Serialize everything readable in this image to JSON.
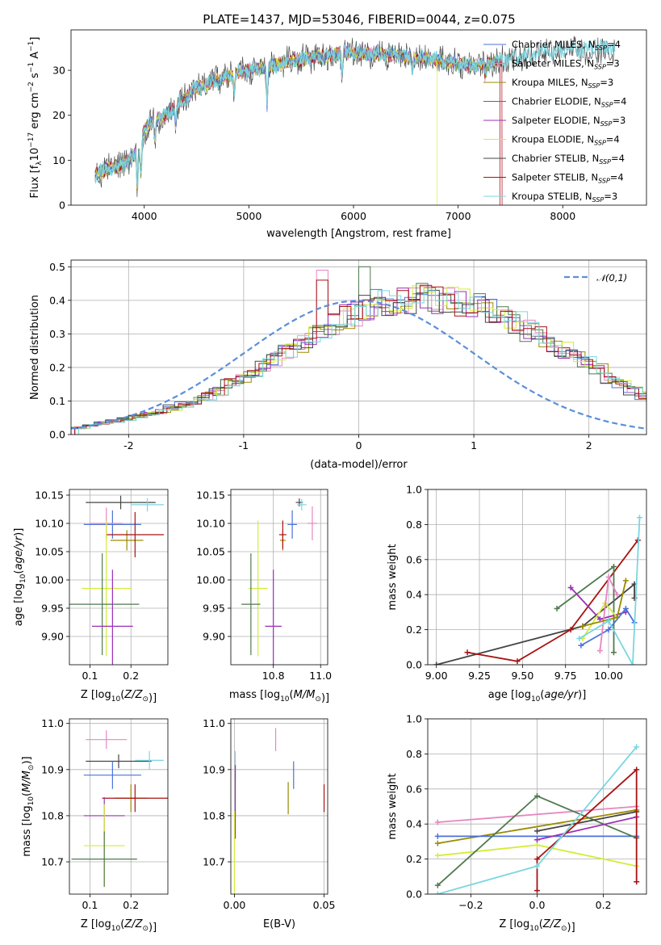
{
  "title": "PLATE=1437, MJD=53046, FIBERID=0044, z=0.075",
  "colors": {
    "Chabrier MILES": "#4a72d8",
    "Salpeter MILES": "#e686c2",
    "Kroupa MILES": "#9a8a00",
    "Chabrier ELODIE": "#4f7a4f",
    "Salpeter ELODIE": "#9c2fb6",
    "Kroupa ELODIE": "#d4ec3a",
    "Chabrier STELIB": "#454545",
    "Salpeter STELIB": "#a81212",
    "Kroupa STELIB": "#7ad6e0"
  },
  "chart_data": [
    {
      "type": "line",
      "xlabel": "wavelength [Angstrom, rest frame]",
      "ylabel": "Flux [f_λ10^-17 erg cm^-2 s^-1 A^-1]",
      "xlim": [
        3300,
        8800
      ],
      "ylim": [
        0,
        39
      ],
      "xticks": [
        4000,
        5000,
        6000,
        7000,
        8000
      ],
      "yticks": [
        0,
        10,
        20,
        30
      ],
      "legend_position": "right",
      "legend": [
        {
          "name": "Chabrier MILES",
          "nssp": "4"
        },
        {
          "name": "Salpeter MILES",
          "nssp": "3"
        },
        {
          "name": "Kroupa MILES",
          "nssp": "3"
        },
        {
          "name": "Chabrier ELODIE",
          "nssp": "4"
        },
        {
          "name": "Salpeter ELODIE",
          "nssp": "3"
        },
        {
          "name": "Kroupa ELODIE",
          "nssp": "4"
        },
        {
          "name": "Chabrier STELIB",
          "nssp": "4"
        },
        {
          "name": "Salpeter STELIB",
          "nssp": "4"
        },
        {
          "name": "Kroupa STELIB",
          "nssp": "3"
        }
      ],
      "continuum": [
        [
          3530,
          7
        ],
        [
          3650,
          8
        ],
        [
          3800,
          9
        ],
        [
          3950,
          12
        ],
        [
          4000,
          17
        ],
        [
          4100,
          19
        ],
        [
          4200,
          20
        ],
        [
          4300,
          22
        ],
        [
          4400,
          24
        ],
        [
          4500,
          26
        ],
        [
          4700,
          28
        ],
        [
          5000,
          30
        ],
        [
          5200,
          31
        ],
        [
          5500,
          32.5
        ],
        [
          5800,
          33.5
        ],
        [
          6000,
          34
        ],
        [
          6300,
          33.5
        ],
        [
          6600,
          33
        ],
        [
          6900,
          32
        ],
        [
          7100,
          31
        ],
        [
          7300,
          31.5
        ],
        [
          7400,
          32
        ],
        [
          7600,
          33
        ],
        [
          7800,
          34
        ],
        [
          8100,
          34.5
        ],
        [
          8400,
          35
        ],
        [
          8500,
          35
        ]
      ],
      "absorptions": [
        [
          3934,
          8
        ],
        [
          3969,
          7
        ],
        [
          4102,
          5
        ],
        [
          4300,
          4
        ],
        [
          4861,
          4
        ],
        [
          5175,
          9
        ],
        [
          5890,
          5
        ],
        [
          6563,
          3
        ],
        [
          7260,
          3
        ]
      ],
      "drops": [
        {
          "series": "Kroupa ELODIE",
          "x": 6800
        },
        {
          "series": "Salpeter STELIB",
          "x": 7400
        },
        {
          "series": "Salpeter MILES",
          "x": 7400
        }
      ]
    },
    {
      "type": "bar",
      "xlabel": "(data-model)/error",
      "ylabel": "Normed distribution",
      "xlim": [
        -2.5,
        2.5
      ],
      "ylim": [
        0,
        0.52
      ],
      "xticks": [
        -2,
        -1,
        0,
        1,
        2
      ],
      "yticks": [
        0.0,
        0.1,
        0.2,
        0.3,
        0.4,
        0.5
      ],
      "grid": true,
      "legend_position": "top-right",
      "gaussian_label": "𝒩(0,1)",
      "bin_width": 0.1,
      "bin_start": -2.5,
      "base_values": [
        0.02,
        0.028,
        0.035,
        0.04,
        0.047,
        0.055,
        0.062,
        0.07,
        0.08,
        0.09,
        0.1,
        0.115,
        0.13,
        0.15,
        0.17,
        0.19,
        0.21,
        0.23,
        0.25,
        0.27,
        0.29,
        0.31,
        0.33,
        0.35,
        0.36,
        0.38,
        0.39,
        0.395,
        0.4,
        0.405,
        0.41,
        0.405,
        0.4,
        0.395,
        0.39,
        0.38,
        0.37,
        0.35,
        0.33,
        0.31,
        0.29,
        0.27,
        0.25,
        0.23,
        0.21,
        0.19,
        0.17,
        0.15,
        0.13,
        0.115,
        0.1,
        0.09,
        0.08,
        0.07,
        0.062,
        0.055,
        0.047,
        0.04,
        0.035,
        0.028
      ],
      "spikes": [
        {
          "series": "Chabrier ELODIE",
          "x": 0.05,
          "value": 0.5
        },
        {
          "series": "Salpeter MILES",
          "x": -0.3,
          "value": 0.49
        },
        {
          "series": "Chabrier STELIB",
          "x": 0.65,
          "value": 0.43
        },
        {
          "series": "Salpeter STELIB",
          "x": -0.35,
          "value": 0.46
        }
      ]
    },
    {
      "type": "scatter",
      "xlabel": "Z [log10(Z/Z⊙)]",
      "ylabel": "age [log10(age/yr)]",
      "xlim": [
        0.05,
        0.29
      ],
      "ylim": [
        9.85,
        10.16
      ],
      "xticks": [
        0.1,
        0.2
      ],
      "yticks": [
        9.9,
        9.95,
        10.0,
        10.05,
        10.1,
        10.15
      ],
      "grid": true,
      "points": [
        {
          "series": "Chabrier STELIB",
          "x": 0.175,
          "y": 10.137,
          "xerr": 0.085,
          "yerr": 0.012
        },
        {
          "series": "Kroupa STELIB",
          "x": 0.24,
          "y": 10.133,
          "xerr": 0.04,
          "yerr": 0.012
        },
        {
          "series": "Chabrier MILES",
          "x": 0.155,
          "y": 10.098,
          "xerr": 0.07,
          "yerr": 0.025
        },
        {
          "series": "Salpeter MILES",
          "x": 0.14,
          "y": 10.1,
          "xerr": 0.04,
          "yerr": 0.028
        },
        {
          "series": "Kroupa MILES",
          "x": 0.19,
          "y": 10.07,
          "xerr": 0.04,
          "yerr": 0.018
        },
        {
          "series": "Salpeter STELIB",
          "x": 0.21,
          "y": 10.08,
          "xerr": 0.07,
          "yerr": 0.04
        },
        {
          "series": "Kroupa ELODIE",
          "x": 0.14,
          "y": 9.985,
          "xerr": 0.06,
          "yerr": 0.12
        },
        {
          "series": "Chabrier ELODIE",
          "x": 0.13,
          "y": 9.957,
          "xerr": 0.09,
          "yerr": 0.09
        },
        {
          "series": "Salpeter ELODIE",
          "x": 0.155,
          "y": 9.918,
          "xerr": 0.05,
          "yerr": 0.1
        }
      ]
    },
    {
      "type": "scatter",
      "xlabel": "mass [log10(M/M⊙)]",
      "ylabel": "",
      "xlim": [
        10.62,
        11.03
      ],
      "ylim": [
        9.85,
        10.16
      ],
      "xticks": [
        10.8,
        11.0
      ],
      "yticks": [
        9.9,
        9.95,
        10.0,
        10.05,
        10.1,
        10.15
      ],
      "grid": true,
      "points": [
        {
          "series": "Chabrier STELIB",
          "x": 10.91,
          "y": 10.137,
          "xerr": 0.015,
          "yerr": 0.007
        },
        {
          "series": "Kroupa STELIB",
          "x": 10.92,
          "y": 10.133,
          "xerr": 0.02,
          "yerr": 0.01
        },
        {
          "series": "Chabrier MILES",
          "x": 10.88,
          "y": 10.098,
          "xerr": 0.02,
          "yerr": 0.025
        },
        {
          "series": "Salpeter MILES",
          "x": 10.965,
          "y": 10.1,
          "xerr": 0.02,
          "yerr": 0.03
        },
        {
          "series": "Kroupa MILES",
          "x": 10.84,
          "y": 10.07,
          "xerr": 0.012,
          "yerr": 0.018
        },
        {
          "series": "Salpeter STELIB",
          "x": 10.84,
          "y": 10.08,
          "xerr": 0.015,
          "yerr": 0.025
        },
        {
          "series": "Kroupa ELODIE",
          "x": 10.735,
          "y": 9.985,
          "xerr": 0.04,
          "yerr": 0.12
        },
        {
          "series": "Chabrier ELODIE",
          "x": 10.705,
          "y": 9.957,
          "xerr": 0.04,
          "yerr": 0.09
        },
        {
          "series": "Salpeter ELODIE",
          "x": 10.8,
          "y": 9.918,
          "xerr": 0.035,
          "yerr": 0.1
        }
      ]
    },
    {
      "type": "line",
      "xlabel": "age [log10(age/yr)]",
      "ylabel": "mass weight",
      "xlim": [
        8.95,
        10.22
      ],
      "ylim": [
        0,
        1.0
      ],
      "xticks": [
        9.0,
        9.25,
        9.5,
        9.75,
        10.0
      ],
      "yticks": [
        0.0,
        0.2,
        0.4,
        0.6,
        0.8,
        1.0
      ],
      "grid": true,
      "series": [
        {
          "name": "Chabrier STELIB",
          "points": [
            [
              9.0,
              0.0
            ],
            [
              9.85,
              0.22
            ],
            [
              10.15,
              0.46
            ],
            [
              10.15,
              0.38
            ]
          ]
        },
        {
          "name": "Salpeter STELIB",
          "points": [
            [
              9.18,
              0.07
            ],
            [
              9.47,
              0.02
            ],
            [
              9.78,
              0.2
            ],
            [
              10.17,
              0.71
            ]
          ]
        },
        {
          "name": "Chabrier ELODIE",
          "points": [
            [
              9.7,
              0.32
            ],
            [
              10.03,
              0.56
            ],
            [
              10.03,
              0.07
            ]
          ]
        },
        {
          "name": "Salpeter ELODIE",
          "points": [
            [
              9.78,
              0.44
            ],
            [
              9.95,
              0.26
            ],
            [
              10.1,
              0.3
            ]
          ]
        },
        {
          "name": "Kroupa ELODIE",
          "points": [
            [
              9.85,
              0.15
            ],
            [
              9.98,
              0.35
            ],
            [
              10.05,
              0.27
            ]
          ]
        },
        {
          "name": "Chabrier MILES",
          "points": [
            [
              9.84,
              0.11
            ],
            [
              10.0,
              0.2
            ],
            [
              10.1,
              0.32
            ],
            [
              10.15,
              0.24
            ]
          ]
        },
        {
          "name": "Salpeter MILES",
          "points": [
            [
              9.95,
              0.08
            ],
            [
              10.0,
              0.5
            ],
            [
              10.05,
              0.4
            ]
          ]
        },
        {
          "name": "Kroupa MILES",
          "points": [
            [
              9.85,
              0.22
            ],
            [
              10.05,
              0.27
            ],
            [
              10.1,
              0.48
            ]
          ]
        },
        {
          "name": "Kroupa STELIB",
          "points": [
            [
              9.83,
              0.15
            ],
            [
              10.0,
              0.25
            ],
            [
              10.14,
              0.0
            ],
            [
              10.18,
              0.84
            ]
          ]
        }
      ]
    },
    {
      "type": "scatter",
      "xlabel": "Z [log10(Z/Z⊙)]",
      "ylabel": "mass [log10(M/M⊙)]",
      "xlim": [
        0.05,
        0.29
      ],
      "ylim": [
        10.63,
        11.01
      ],
      "xticks": [
        0.1,
        0.2
      ],
      "yticks": [
        10.7,
        10.8,
        10.9,
        11.0
      ],
      "grid": true,
      "points": [
        {
          "series": "Salpeter MILES",
          "x": 0.14,
          "y": 10.965,
          "xerr": 0.05,
          "yerr": 0.02
        },
        {
          "series": "Chabrier STELIB",
          "x": 0.17,
          "y": 10.918,
          "xerr": 0.08,
          "yerr": 0.015
        },
        {
          "series": "Kroupa STELIB",
          "x": 0.245,
          "y": 10.92,
          "xerr": 0.035,
          "yerr": 0.02
        },
        {
          "series": "Chabrier MILES",
          "x": 0.155,
          "y": 10.888,
          "xerr": 0.07,
          "yerr": 0.03
        },
        {
          "series": "Kroupa MILES",
          "x": 0.2,
          "y": 10.838,
          "xerr": 0.04,
          "yerr": 0.03
        },
        {
          "series": "Salpeter STELIB",
          "x": 0.21,
          "y": 10.838,
          "xerr": 0.08,
          "yerr": 0.03
        },
        {
          "series": "Salpeter ELODIE",
          "x": 0.135,
          "y": 10.8,
          "xerr": 0.05,
          "yerr": 0.04
        },
        {
          "series": "Kroupa ELODIE",
          "x": 0.135,
          "y": 10.735,
          "xerr": 0.05,
          "yerr": 0.09
        },
        {
          "series": "Chabrier ELODIE",
          "x": 0.135,
          "y": 10.706,
          "xerr": 0.08,
          "yerr": 0.06
        }
      ]
    },
    {
      "type": "scatter",
      "xlabel": "E(B-V)",
      "ylabel": "",
      "xlim": [
        -0.002,
        0.052
      ],
      "ylim": [
        10.63,
        11.01
      ],
      "xticks": [
        0.0,
        0.05
      ],
      "yticks": [
        10.7,
        10.8,
        10.9,
        11.0
      ],
      "grid": true,
      "points": [
        {
          "series": "Salpeter MILES",
          "x": 0.023,
          "y": 10.965,
          "xerr": 0,
          "yerr": 0.025
        },
        {
          "series": "Chabrier MILES",
          "x": 0.033,
          "y": 10.888,
          "xerr": 0,
          "yerr": 0.03
        },
        {
          "series": "Kroupa STELIB",
          "x": 0.0005,
          "y": 10.91,
          "xerr": 0,
          "yerr": 0.03
        },
        {
          "series": "Kroupa MILES",
          "x": 0.03,
          "y": 10.838,
          "xerr": 0,
          "yerr": 0.035
        },
        {
          "series": "Salpeter STELIB",
          "x": 0.05,
          "y": 10.838,
          "xerr": 0,
          "yerr": 0.03
        },
        {
          "series": "Salpeter ELODIE",
          "x": 0.0005,
          "y": 10.83,
          "xerr": 0,
          "yerr": 0.08
        },
        {
          "series": "Kroupa ELODIE",
          "x": 0.0,
          "y": 10.72,
          "xerr": 0,
          "yerr": 0.09
        }
      ]
    },
    {
      "type": "line",
      "xlabel": "Z [log10(Z/Z⊙)]",
      "ylabel": "mass weight",
      "xlim": [
        -0.33,
        0.33
      ],
      "ylim": [
        0,
        1.0
      ],
      "xticks": [
        -0.2,
        0.0,
        0.2
      ],
      "yticks": [
        0.0,
        0.2,
        0.4,
        0.6,
        0.8,
        1.0
      ],
      "grid": true,
      "series": [
        {
          "name": "Salpeter MILES",
          "points": [
            [
              -0.3,
              0.41
            ],
            [
              0.3,
              0.5
            ]
          ]
        },
        {
          "name": "Kroupa MILES",
          "points": [
            [
              -0.3,
              0.29
            ],
            [
              0.3,
              0.48
            ]
          ]
        },
        {
          "name": "Chabrier MILES",
          "points": [
            [
              -0.3,
              0.33
            ],
            [
              0.3,
              0.33
            ]
          ]
        },
        {
          "name": "Kroupa ELODIE",
          "points": [
            [
              -0.3,
              0.22
            ],
            [
              0.0,
              0.28
            ],
            [
              0.3,
              0.16
            ]
          ]
        },
        {
          "name": "Chabrier ELODIE",
          "points": [
            [
              -0.3,
              0.05
            ],
            [
              0.0,
              0.56
            ],
            [
              0.3,
              0.32
            ]
          ]
        },
        {
          "name": "Chabrier STELIB",
          "points": [
            [
              0.0,
              0.36
            ],
            [
              0.3,
              0.47
            ]
          ]
        },
        {
          "name": "Salpeter ELODIE",
          "points": [
            [
              0.0,
              0.31
            ],
            [
              0.3,
              0.44
            ]
          ]
        },
        {
          "name": "Salpeter STELIB",
          "points": [
            [
              0.0,
              0.02
            ],
            [
              0.0,
              0.2
            ],
            [
              0.3,
              0.71
            ],
            [
              0.3,
              0.07
            ]
          ]
        },
        {
          "name": "Kroupa STELIB",
          "points": [
            [
              -0.3,
              0.0
            ],
            [
              0.0,
              0.16
            ],
            [
              0.3,
              0.84
            ]
          ]
        }
      ]
    }
  ]
}
